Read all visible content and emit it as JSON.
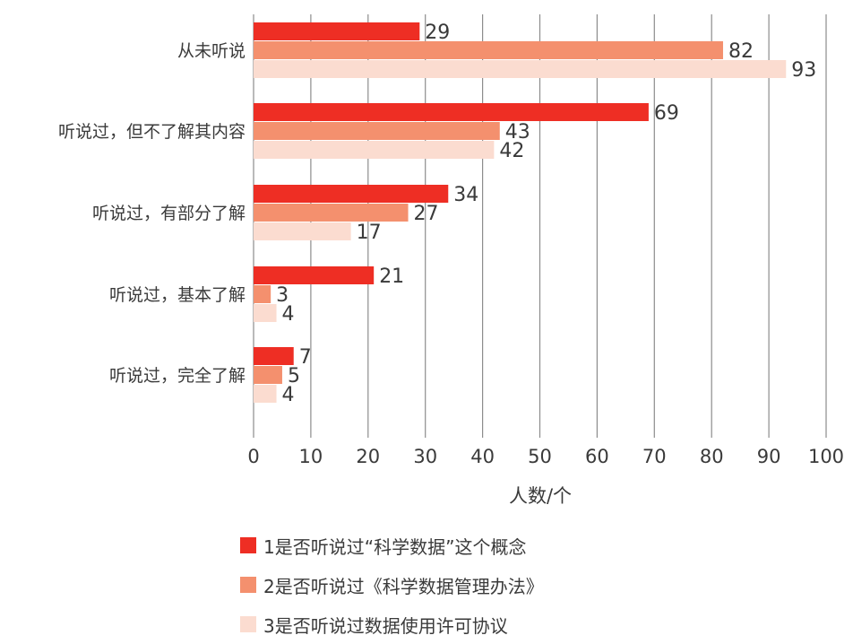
{
  "chart_data": {
    "type": "bar",
    "orientation": "horizontal",
    "categories": [
      "从未听说",
      "听说过，但不了解其内容",
      "听说过，有部分了解",
      "听说过，基本了解",
      "听说过，完全了解"
    ],
    "series": [
      {
        "name": "1是否听说过“科学数据”这个概念",
        "color": "#ee2e24",
        "values": [
          29,
          69,
          34,
          21,
          7
        ]
      },
      {
        "name": "2是否听说过《科学数据管理办法》",
        "color": "#f4906e",
        "values": [
          82,
          43,
          27,
          3,
          5
        ]
      },
      {
        "name": "3是否听说过数据使用许可协议",
        "color": "#fbdcd0",
        "values": [
          93,
          42,
          17,
          4,
          4
        ]
      }
    ],
    "x_ticks": [
      "0",
      "10",
      "20",
      "30",
      "40",
      "50",
      "60",
      "70",
      "80",
      "90",
      "100"
    ],
    "xlim": [
      0,
      100
    ],
    "xlabel": "人数/个",
    "grid": "vertical",
    "legend_position": "bottom"
  }
}
